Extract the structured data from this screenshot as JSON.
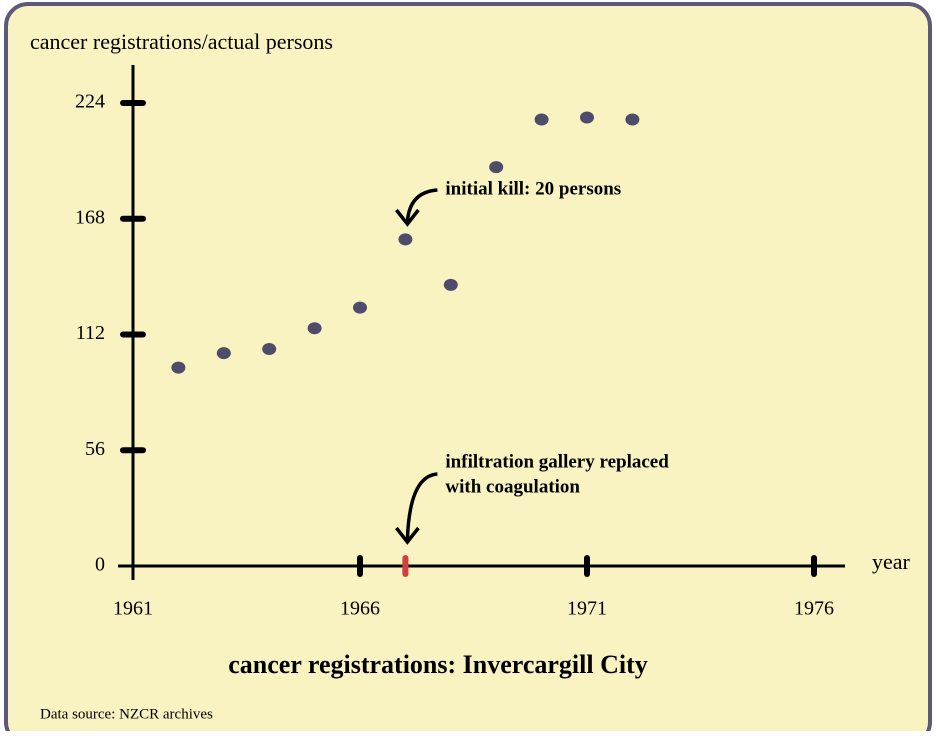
{
  "chart_data": {
    "type": "scatter",
    "y_label": "cancer registrations/actual persons",
    "x_label": "year",
    "title": "cancer registrations: Invercargill City",
    "source": "Data source: NZCR archives",
    "x": [
      1962,
      1963,
      1964,
      1965,
      1966,
      1967,
      1968,
      1969,
      1970,
      1971,
      1972
    ],
    "values": [
      96,
      103,
      105,
      115,
      125,
      158,
      136,
      193,
      216,
      217,
      216
    ],
    "color": "#4d4d6b",
    "xlim": [
      1961,
      1976
    ],
    "xticks": [
      1961,
      1966,
      1971,
      1976
    ],
    "ylim": [
      0,
      224
    ],
    "yticks": [
      0,
      56,
      112,
      168,
      224
    ],
    "annotations": [
      {
        "text": "initial kill: 20 persons",
        "x": 1967
      },
      {
        "text": [
          "infiltration gallery replaced",
          "with coagulation"
        ],
        "x": 1967,
        "color": "#d04040"
      }
    ]
  }
}
